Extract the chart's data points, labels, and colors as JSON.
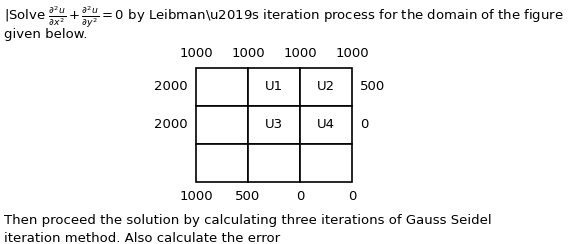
{
  "line1": "|Solve $\\frac{\\partial^2 u}{\\partial x^2} + \\frac{\\partial^2 u}{\\partial y^2} = 0$ by Leibman’s iteration process for the domain of the figure",
  "line2": "given below.",
  "footer1": "Then proceed the solution by calculating three iterations of Gauss Seidel",
  "footer2": "iteration method. Also calculate the error",
  "top_labels": [
    "1000",
    "1000",
    "1000",
    "1000"
  ],
  "bottom_labels": [
    "1000",
    "500",
    "0",
    "0"
  ],
  "left_labels": [
    "2000",
    "2000"
  ],
  "right_labels": [
    "500",
    "0"
  ],
  "cell_labels": [
    [
      "",
      "U1",
      "U2"
    ],
    [
      "",
      "U3",
      "U4"
    ],
    [
      "",
      "",
      ""
    ]
  ],
  "bg_color": "#ffffff",
  "text_color": "#000000"
}
